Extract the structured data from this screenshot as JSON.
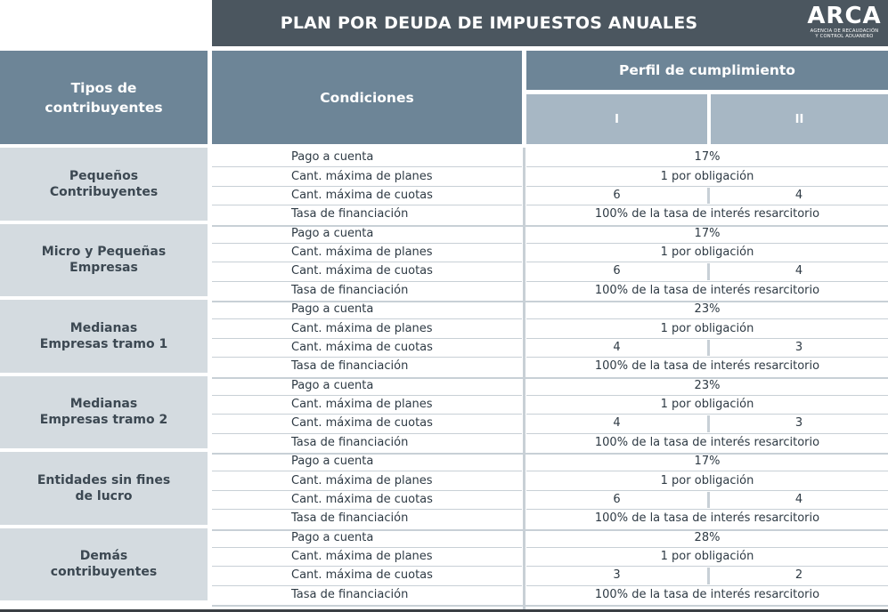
{
  "title": "PLAN POR DEUDA DE IMPUESTOS ANUALES",
  "logo": {
    "word": "ARCA",
    "subtitle_line1": "AGENCIA DE RECAUDACIÓN",
    "subtitle_line2": "Y CONTROL ADUANERO"
  },
  "headers": {
    "tipos": "Tipos de contribuyentes",
    "condiciones": "Condiciones",
    "perfil": "Perfil de cumplimiento",
    "perfil_I": "I",
    "perfil_II": "II"
  },
  "conditions_labels": [
    "Pago a cuenta",
    "Cant. máxima de planes",
    "Cant. máxima de cuotas",
    "Tasa de financiación"
  ],
  "groups": [
    {
      "name": "Pequeños Contribuyentes",
      "pago": "17%",
      "planes": "1 por obligación",
      "cuotas_I": "6",
      "cuotas_II": "4",
      "tasa": "100% de la tasa de interés resarcitorio"
    },
    {
      "name": "Micro y Pequeñas Empresas",
      "pago": "17%",
      "planes": "1 por obligación",
      "cuotas_I": "6",
      "cuotas_II": "4",
      "tasa": "100% de la tasa de interés resarcitorio"
    },
    {
      "name": "Medianas Empresas tramo 1",
      "pago": "23%",
      "planes": "1 por obligación",
      "cuotas_I": "4",
      "cuotas_II": "3",
      "tasa": "100% de la tasa de interés resarcitorio"
    },
    {
      "name": "Medianas Empresas tramo 2",
      "pago": "23%",
      "planes": "1 por obligación",
      "cuotas_I": "4",
      "cuotas_II": "3",
      "tasa": "100% de la tasa de interés resarcitorio"
    },
    {
      "name": "Entidades sin fines de lucro",
      "pago": "17%",
      "planes": "1 por obligación",
      "cuotas_I": "6",
      "cuotas_II": "4",
      "tasa": "100% de la tasa de interés resarcitorio"
    },
    {
      "name": "Demás contribuyentes",
      "pago": "28%",
      "planes": "1 por obligación",
      "cuotas_I": "3",
      "cuotas_II": "2",
      "tasa": "100% de la tasa de interés resarcitorio"
    }
  ]
}
